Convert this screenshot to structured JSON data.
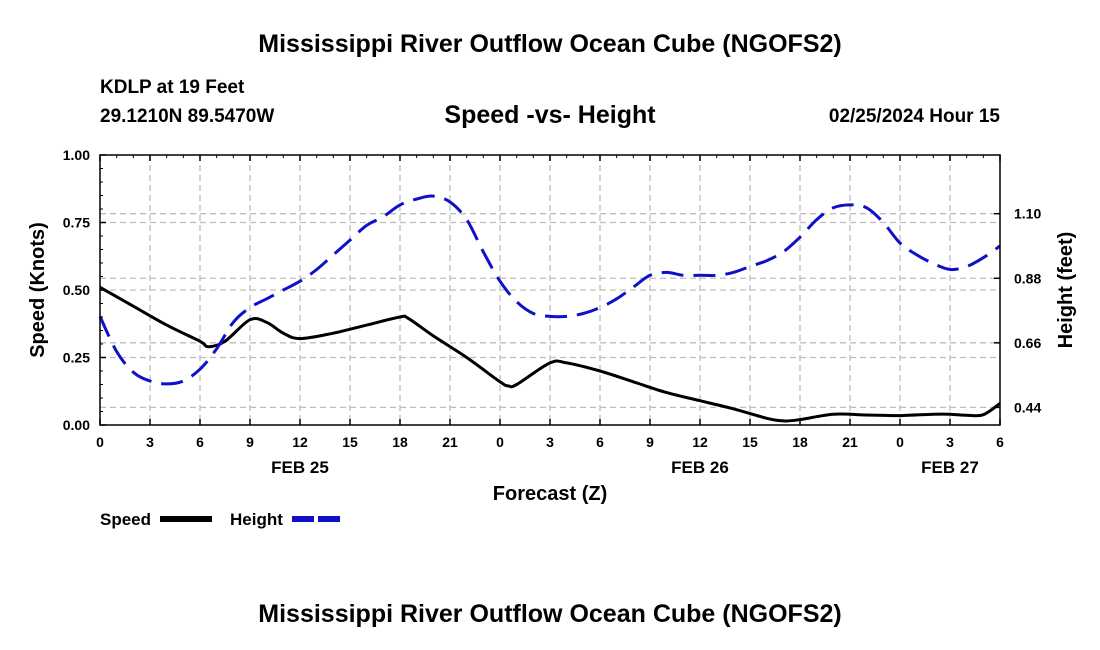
{
  "header": {
    "main_title": "Mississippi River Outflow Ocean Cube (NGOFS2)",
    "station": "KDLP at 19 Feet",
    "coords": "29.1210N  89.5470W",
    "subtitle": "Speed -vs- Height",
    "datetime": "02/25/2024 Hour 15"
  },
  "footer": {
    "title": "Mississippi River Outflow Ocean Cube (NGOFS2)"
  },
  "chart_data": {
    "type": "line",
    "title": "Speed -vs- Height",
    "xlabel": "Forecast (Z)",
    "ylabel": "Speed (Knots)",
    "y2label": "Height (feet)",
    "xlim": [
      0,
      54
    ],
    "ylim": [
      0,
      1
    ],
    "y2lim": [
      0.38,
      1.3
    ],
    "grid": true,
    "x_ticks": [
      0,
      3,
      6,
      9,
      12,
      15,
      18,
      21,
      24,
      27,
      30,
      33,
      36,
      39,
      42,
      45,
      48,
      51,
      54
    ],
    "x_tick_labels": [
      "0",
      "3",
      "6",
      "9",
      "12",
      "15",
      "18",
      "21",
      "0",
      "3",
      "6",
      "9",
      "12",
      "15",
      "18",
      "21",
      "0",
      "3",
      "6"
    ],
    "y_ticks": [
      0,
      0.25,
      0.5,
      0.75,
      1.0
    ],
    "y_tick_labels": [
      "0.00",
      "0.25",
      "0.50",
      "0.75",
      "1.00"
    ],
    "y2_ticks": [
      0.44,
      0.66,
      0.88,
      1.1
    ],
    "y2_tick_labels": [
      "0.44",
      "0.66",
      "0.88",
      "1.10"
    ],
    "date_labels": [
      {
        "x": 12,
        "label": "FEB 25"
      },
      {
        "x": 36,
        "label": "FEB 26"
      },
      {
        "x": 51,
        "label": "FEB 27"
      }
    ],
    "series": [
      {
        "name": "Speed",
        "axis": "left",
        "color": "#000000",
        "style": "solid",
        "x": [
          0,
          2,
          4,
          6,
          6.5,
          7.5,
          9,
          10,
          11,
          12,
          14,
          16,
          18,
          18.5,
          20,
          22,
          24,
          24.5,
          25,
          27,
          28,
          30,
          32,
          34,
          36,
          38,
          40,
          41,
          42,
          44,
          46,
          48,
          50,
          51,
          52,
          53,
          54
        ],
        "values": [
          0.51,
          0.44,
          0.37,
          0.31,
          0.29,
          0.31,
          0.39,
          0.38,
          0.34,
          0.32,
          0.34,
          0.37,
          0.4,
          0.395,
          0.33,
          0.25,
          0.16,
          0.145,
          0.15,
          0.23,
          0.23,
          0.2,
          0.16,
          0.12,
          0.09,
          0.06,
          0.025,
          0.015,
          0.02,
          0.04,
          0.037,
          0.035,
          0.04,
          0.04,
          0.036,
          0.038,
          0.08
        ]
      },
      {
        "name": "Height",
        "axis": "right",
        "color": "#1010c8",
        "style": "dashed",
        "x": [
          0,
          1,
          2,
          3,
          4,
          5,
          6,
          7,
          8,
          9,
          10,
          11,
          12,
          13,
          14,
          15,
          16,
          17,
          18,
          19,
          20,
          21,
          22,
          23,
          24,
          25,
          26,
          27,
          28,
          29,
          30,
          31,
          32,
          33,
          34,
          35,
          36,
          37,
          38,
          39,
          40,
          41,
          42,
          43,
          44,
          45,
          46,
          47,
          48,
          49,
          50,
          51,
          52,
          53,
          54
        ],
        "values": [
          0.75,
          0.63,
          0.56,
          0.53,
          0.52,
          0.53,
          0.57,
          0.64,
          0.73,
          0.78,
          0.81,
          0.84,
          0.87,
          0.91,
          0.96,
          1.01,
          1.06,
          1.09,
          1.13,
          1.15,
          1.16,
          1.14,
          1.08,
          0.97,
          0.87,
          0.8,
          0.76,
          0.75,
          0.75,
          0.76,
          0.78,
          0.81,
          0.85,
          0.89,
          0.9,
          0.89,
          0.89,
          0.89,
          0.9,
          0.92,
          0.94,
          0.97,
          1.02,
          1.08,
          1.12,
          1.13,
          1.12,
          1.07,
          1.0,
          0.96,
          0.93,
          0.91,
          0.92,
          0.95,
          0.99
        ]
      }
    ],
    "legend": {
      "position": "bottom-left",
      "entries": [
        {
          "label": "Speed",
          "color": "#000000",
          "style": "solid"
        },
        {
          "label": "Height",
          "color": "#1010c8",
          "style": "dashed"
        }
      ]
    }
  }
}
